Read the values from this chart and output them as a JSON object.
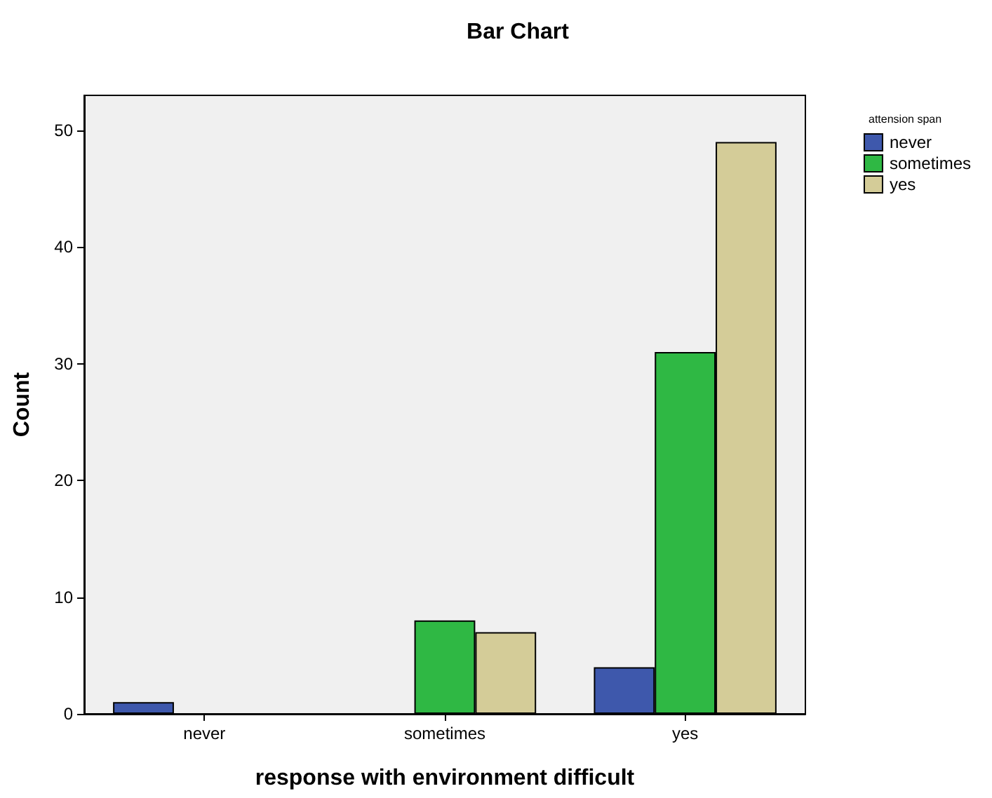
{
  "chart_data": {
    "type": "bar",
    "title": "Bar Chart",
    "xlabel": "response with environment difficult",
    "ylabel": "Count",
    "legend_title": "attension span",
    "categories": [
      "never",
      "sometimes",
      "yes"
    ],
    "series": [
      {
        "name": "never",
        "color": "#3e58ac",
        "values": [
          1,
          null,
          4
        ]
      },
      {
        "name": "sometimes",
        "color": "#2fb844",
        "values": [
          null,
          8,
          31
        ]
      },
      {
        "name": "yes",
        "color": "#d4cc98",
        "values": [
          null,
          7,
          49
        ]
      }
    ],
    "ylim": [
      0,
      53
    ],
    "yticks": [
      0,
      10,
      20,
      30,
      40,
      50
    ],
    "grid": false,
    "legend": "top right"
  }
}
